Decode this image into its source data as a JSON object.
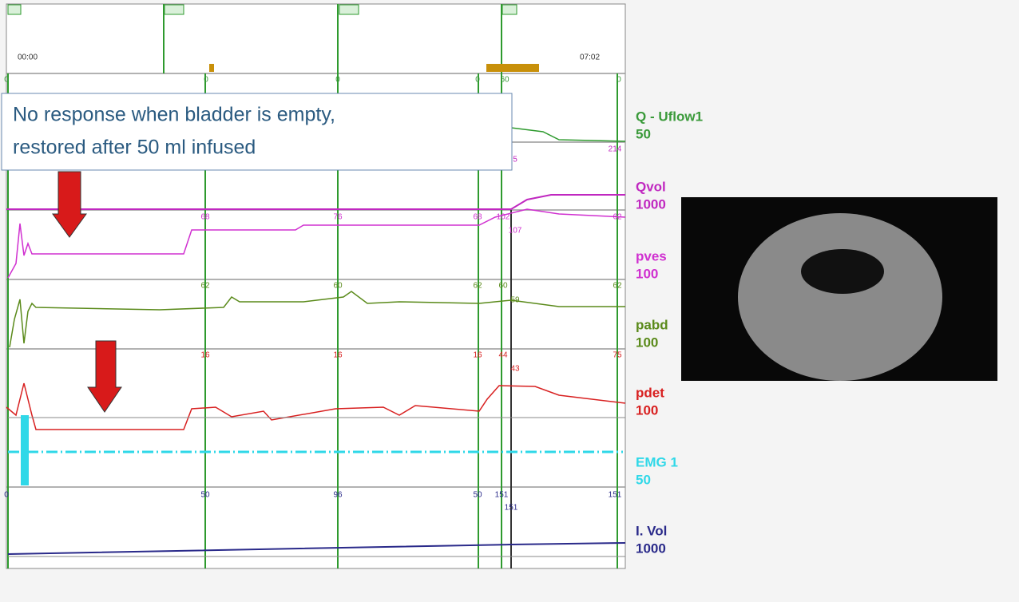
{
  "annotation": {
    "lines": [
      "No response when bladder is empty,",
      "restored after 50 ml infused"
    ]
  },
  "timeline": {
    "start": "00:00",
    "end": "07:02"
  },
  "channels": [
    {
      "name": "Q - Uflow1",
      "scale": "50",
      "ticks": [
        "0",
        "0",
        "0",
        "0",
        "60",
        "0"
      ]
    },
    {
      "name": "Qvol",
      "scale": "1000",
      "ticks": [
        "5",
        "214"
      ]
    },
    {
      "name": "pves",
      "scale": "100",
      "ticks": [
        "68",
        "76",
        "68",
        "102",
        "107",
        "62"
      ]
    },
    {
      "name": "pabd",
      "scale": "100",
      "ticks": [
        "62",
        "60",
        "62",
        "60",
        "59",
        "62"
      ]
    },
    {
      "name": "pdet",
      "scale": "100",
      "ticks": [
        "16",
        "16",
        "16",
        "44",
        "43",
        "75"
      ]
    },
    {
      "name": "EMG 1",
      "scale": "50",
      "ticks": []
    },
    {
      "name": "I. Vol",
      "scale": "1000",
      "ticks": [
        "0",
        "50",
        "96",
        "50",
        "151",
        "151",
        "151"
      ]
    }
  ]
}
